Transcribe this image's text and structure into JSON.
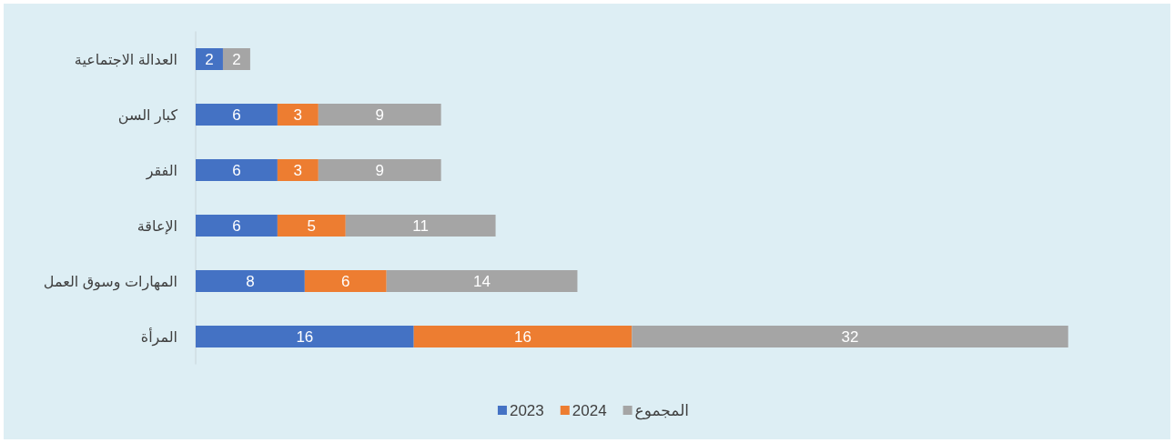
{
  "chart_data": {
    "type": "bar",
    "orientation": "horizontal",
    "stacked": true,
    "data_labels": true,
    "legend": "bottom",
    "categories": [
      "العدالة الاجتماعية",
      "كبار السن",
      "الفقر",
      "الإعاقة",
      "المهارات وسوق العمل",
      "المرأة"
    ],
    "series": [
      {
        "name": "2023",
        "color": "#4472c4",
        "values": [
          2,
          6,
          6,
          6,
          8,
          16
        ]
      },
      {
        "name": "2024",
        "color": "#ed7d31",
        "values": [
          null,
          3,
          3,
          5,
          6,
          16
        ]
      },
      {
        "name": "المجموع",
        "color": "#a5a5a5",
        "values": [
          2,
          9,
          9,
          11,
          14,
          32
        ]
      }
    ]
  }
}
